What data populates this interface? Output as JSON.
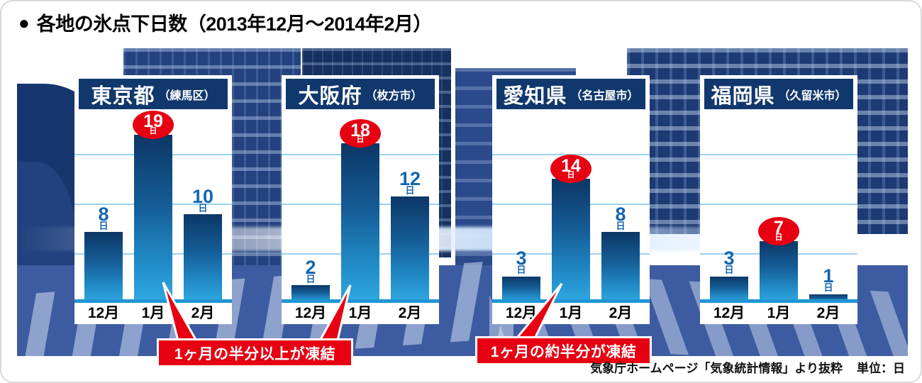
{
  "header": {
    "bullet": "●",
    "title": "各地の氷点下日数（2013年12月～2014年2月）"
  },
  "chart_data": {
    "type": "bar",
    "title": "各地の氷点下日数（2013年12月～2014年2月）",
    "unit": "日",
    "categories": [
      "12月",
      "1月",
      "2月"
    ],
    "ylabel": "氷点下日数",
    "ylim": [
      0,
      20
    ],
    "grid": true,
    "panels": [
      {
        "region": "東京都",
        "area": "（練馬区）",
        "values": [
          8,
          19,
          10
        ],
        "highlight_index": 1,
        "highlight_label": "19日"
      },
      {
        "region": "大阪府",
        "area": "（枚方市）",
        "values": [
          2,
          18,
          12
        ],
        "highlight_index": 1,
        "highlight_label": "18日"
      },
      {
        "region": "愛知県",
        "area": "（名古屋市）",
        "values": [
          3,
          14,
          8
        ],
        "highlight_index": 1,
        "highlight_label": "14日"
      },
      {
        "region": "福岡県",
        "area": "（久留米市）",
        "values": [
          3,
          7,
          1
        ],
        "highlight_index": 1,
        "highlight_label": "7日"
      }
    ]
  },
  "callouts": [
    {
      "text": "1ヶ月の半分以上が凍結",
      "targets": [
        "東京都 1月",
        "大阪府 1月"
      ]
    },
    {
      "text": "1ヶ月の約半分が凍結",
      "targets": [
        "愛知県 1月"
      ]
    }
  ],
  "footer": {
    "source": "気象庁ホームページ「気象統計情報」より抜粋",
    "unit_note": "単位：日"
  },
  "colors": {
    "accent_red": "#e60012",
    "header_navy": "#11386d",
    "bar_gradient_top": "#0c3766",
    "bar_gradient_bottom": "#2fa9e1",
    "baseline_blue": "#2095d5",
    "gridline_blue": "#9bd2ef",
    "value_blue": "#1566af"
  }
}
